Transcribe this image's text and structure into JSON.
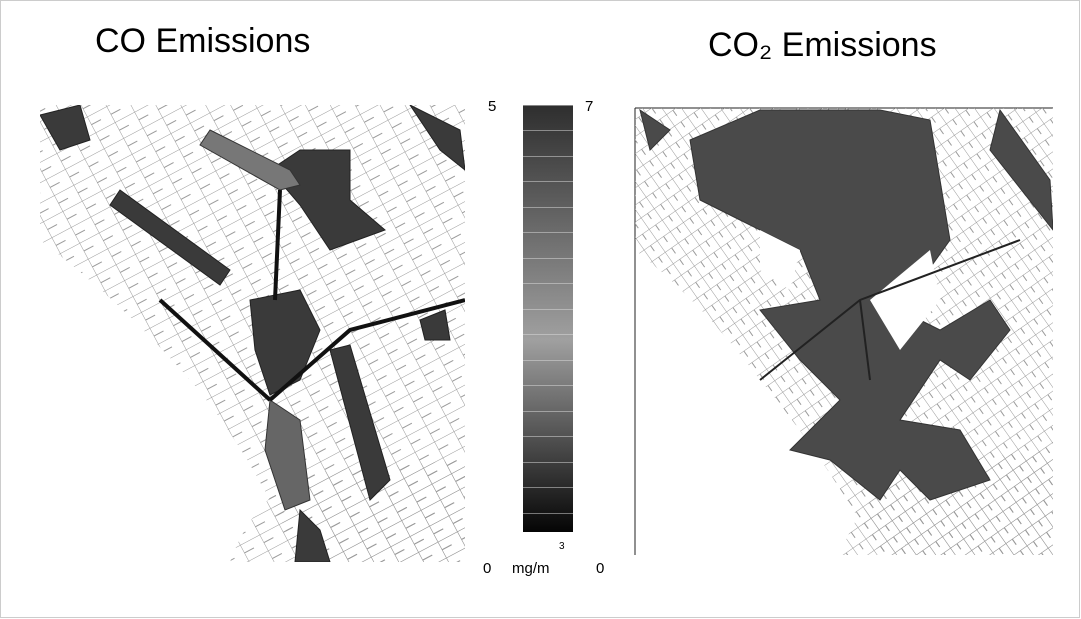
{
  "panels": [
    {
      "title": "CO Emissions"
    },
    {
      "title": "CO₂ Emissions"
    }
  ],
  "colorbar": {
    "left_max": 5,
    "left_min": 0,
    "right_max": 7,
    "right_min": 0,
    "unit": "mg/m",
    "unit_superscript": "3"
  }
}
